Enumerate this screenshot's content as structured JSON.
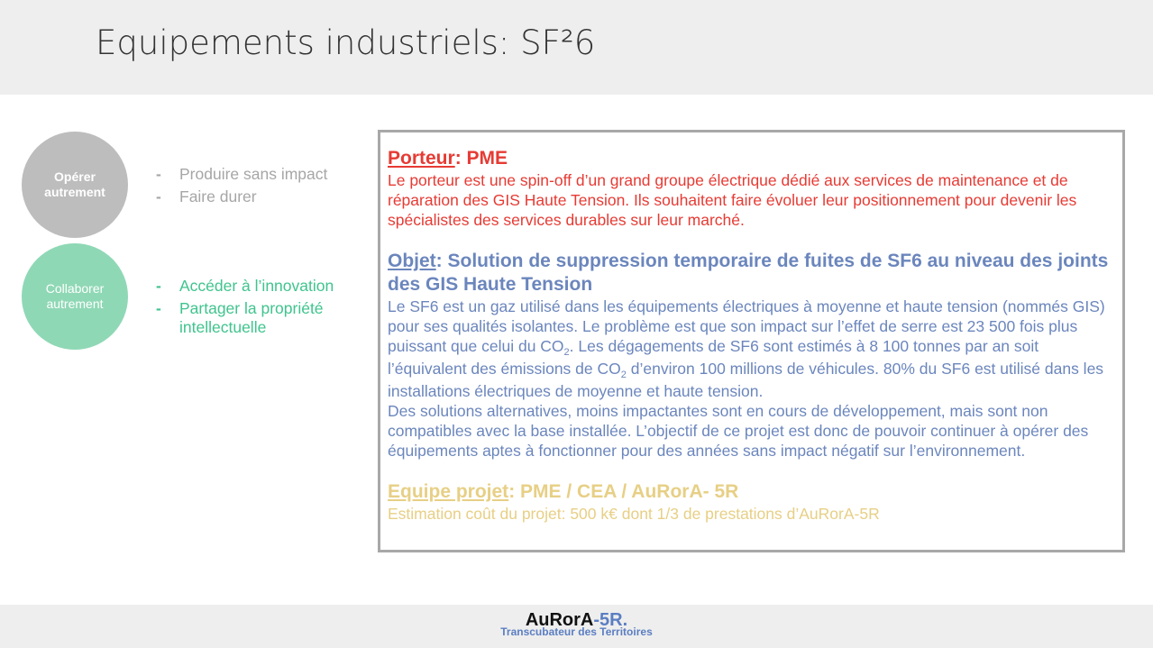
{
  "header": {
    "title": "Equipements industriels: SF²6"
  },
  "circles": [
    {
      "label_line1": "Opérer",
      "label_line2": "autrement"
    },
    {
      "label_line1": "Collaborer",
      "label_line2": "autrement"
    }
  ],
  "bullets_group1": [
    "Produire sans impact",
    "Faire durer"
  ],
  "bullets_group2": [
    "Accéder à l’innovation",
    "Partager la propriété intellectuelle"
  ],
  "bullet_dash": "-",
  "box": {
    "porteur": {
      "label": "Porteur",
      "value": ": PME",
      "text": "Le porteur est une spin-off d’un grand groupe électrique dédié aux services de maintenance et de réparation des GIS Haute Tension. Ils souhaitent faire évoluer leur positionnement pour devenir les spécialistes des services durables sur leur marché."
    },
    "objet": {
      "label": "Objet",
      "value": ": Solution de suppression temporaire de fuites de SF6 au niveau des joints des GIS Haute Tension",
      "text_part1": "Le SF6 est un gaz utilisé dans les équipements électriques à moyenne et haute tension (nommés GIS) pour ses qualités isolantes. Le problème est que son impact sur l’effet de serre est 23 500 fois plus puissant que celui du CO",
      "sub1": "2",
      "text_part2": ". Les dégagements de SF6 sont estimés à 8 100 tonnes par an soit l’équivalent des émissions de CO",
      "sub2": "2",
      "text_part3": " d’environ 100 millions de véhicules. 80% du SF6 est utilisé dans les installations électriques de moyenne et haute tension.",
      "text2": "Des solutions alternatives, moins impactantes sont en cours de développement, mais sont non compatibles avec la base installée. L’objectif de ce projet est donc de pouvoir continuer à opérer des équipements aptes à fonctionner pour des années sans impact négatif sur l’environnement."
    },
    "equipe": {
      "label": "Equipe projet",
      "value": ": PME / CEA / AuRorA- 5R",
      "text": "Estimation coût du projet: 500 k€ dont 1/3 de prestations d’AuRorA-5R"
    }
  },
  "footer": {
    "logo_part1": "AuRorA",
    "logo_part2": "-5R.",
    "tagline": "Transcubateur des Territoires"
  },
  "colors": {
    "porteur": "#e63b34",
    "objet": "#6b86bd",
    "equipe": "#e7cf85",
    "circle1": "#bdbdbd",
    "circle2": "#8fd8b5"
  }
}
